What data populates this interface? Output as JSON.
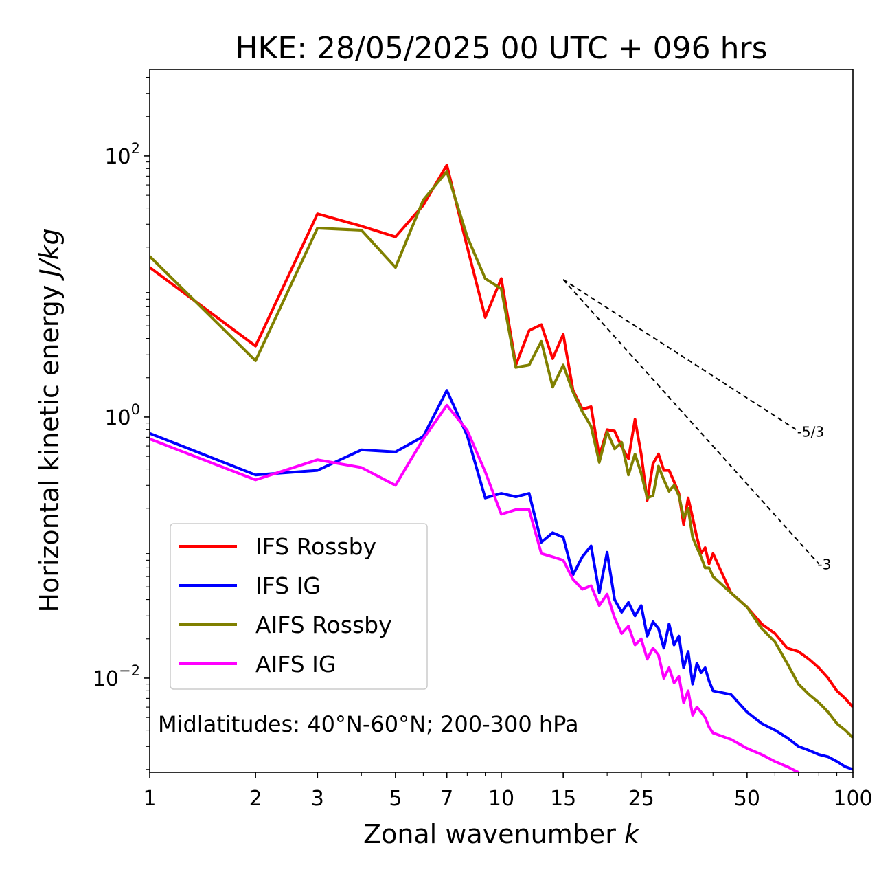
{
  "chart_data": {
    "type": "line",
    "title": "HKE: 28/05/2025 00 UTC + 096 hrs",
    "xlabel_text": "Zonal wavenumber ",
    "xlabel_var": "k",
    "ylabel_text": "Horizontal kinetic energy ",
    "ylabel_unit": "J/kg",
    "xscale": "log",
    "yscale": "log",
    "xlim": [
      1,
      100
    ],
    "ylim": [
      0.0019,
      460
    ],
    "xticks": [
      1,
      2,
      3,
      5,
      7,
      10,
      15,
      25,
      50,
      100
    ],
    "xtick_labels": [
      "1",
      "2",
      "3",
      "5",
      "7",
      "10",
      "15",
      "25",
      "50",
      "100"
    ],
    "yticks": [
      {
        "value": 100,
        "base": "10",
        "exp": "2"
      },
      {
        "value": 1,
        "base": "10",
        "exp": "0"
      },
      {
        "value": 0.01,
        "base": "10",
        "exp": "−2"
      }
    ],
    "legend_placement": "lower-left",
    "annotation": "Midlatitudes: 40°N-60°N; 200-300 hPa",
    "reference_slopes": [
      {
        "label": "-5/3",
        "x": [
          15,
          70
        ],
        "y": [
          11.3,
          0.78
        ]
      },
      {
        "label": "-3",
        "x": [
          15,
          80
        ],
        "y": [
          11.3,
          0.075
        ]
      }
    ],
    "series": [
      {
        "name": "IFS Rossby",
        "color": "#ff0000",
        "x": [
          1,
          2,
          3,
          4,
          5,
          6,
          7,
          8,
          9,
          10,
          11,
          12,
          13,
          14,
          15,
          16,
          17,
          18,
          19,
          20,
          21,
          22,
          23,
          24,
          25,
          26,
          27,
          28,
          29,
          30,
          31,
          32,
          33,
          34,
          35,
          36,
          37,
          38,
          39,
          40,
          45,
          50,
          55,
          60,
          65,
          70,
          75,
          80,
          85,
          90,
          95,
          100
        ],
        "y": [
          14,
          3.5,
          36,
          29,
          24,
          42,
          85,
          20,
          5.8,
          11.5,
          2.5,
          4.6,
          5.1,
          2.8,
          4.3,
          1.6,
          1.15,
          1.2,
          0.5,
          0.8,
          0.78,
          0.59,
          0.48,
          0.96,
          0.52,
          0.23,
          0.44,
          0.52,
          0.39,
          0.39,
          0.32,
          0.26,
          0.15,
          0.24,
          0.17,
          0.12,
          0.09,
          0.1,
          0.075,
          0.09,
          0.045,
          0.035,
          0.026,
          0.022,
          0.017,
          0.016,
          0.014,
          0.012,
          0.01,
          0.008,
          0.007,
          0.006
        ]
      },
      {
        "name": "IFS IG",
        "color": "#0000ff",
        "x": [
          1,
          2,
          3,
          4,
          5,
          6,
          7,
          8,
          9,
          10,
          11,
          12,
          13,
          14,
          15,
          16,
          17,
          18,
          19,
          20,
          21,
          22,
          23,
          24,
          25,
          26,
          27,
          28,
          29,
          30,
          31,
          32,
          33,
          34,
          35,
          36,
          37,
          38,
          39,
          40,
          45,
          50,
          55,
          60,
          65,
          70,
          75,
          80,
          85,
          90,
          95,
          100
        ],
        "y": [
          0.75,
          0.36,
          0.39,
          0.56,
          0.54,
          0.71,
          1.6,
          0.72,
          0.24,
          0.26,
          0.245,
          0.26,
          0.11,
          0.13,
          0.12,
          0.062,
          0.085,
          0.103,
          0.045,
          0.092,
          0.04,
          0.032,
          0.038,
          0.03,
          0.036,
          0.021,
          0.027,
          0.024,
          0.017,
          0.026,
          0.018,
          0.021,
          0.012,
          0.016,
          0.009,
          0.013,
          0.011,
          0.012,
          0.0095,
          0.008,
          0.0075,
          0.0055,
          0.0045,
          0.004,
          0.0035,
          0.003,
          0.0028,
          0.0026,
          0.0025,
          0.0023,
          0.0021,
          0.002
        ]
      },
      {
        "name": "AIFS Rossby",
        "color": "#808000",
        "x": [
          1,
          2,
          3,
          4,
          5,
          6,
          7,
          8,
          9,
          10,
          11,
          12,
          13,
          14,
          15,
          16,
          17,
          18,
          19,
          20,
          21,
          22,
          23,
          24,
          25,
          26,
          27,
          28,
          29,
          30,
          31,
          32,
          33,
          34,
          35,
          36,
          37,
          38,
          39,
          40,
          45,
          50,
          55,
          60,
          65,
          70,
          75,
          80,
          85,
          90,
          95,
          100
        ],
        "y": [
          17,
          2.7,
          28,
          27,
          14,
          46,
          76,
          24,
          11.5,
          9.6,
          2.4,
          2.5,
          3.8,
          1.7,
          2.5,
          1.55,
          1.1,
          0.85,
          0.45,
          0.77,
          0.57,
          0.64,
          0.36,
          0.52,
          0.37,
          0.24,
          0.25,
          0.42,
          0.33,
          0.27,
          0.3,
          0.25,
          0.17,
          0.2,
          0.12,
          0.1,
          0.085,
          0.07,
          0.07,
          0.06,
          0.045,
          0.035,
          0.024,
          0.019,
          0.013,
          0.009,
          0.0075,
          0.0065,
          0.0055,
          0.0045,
          0.004,
          0.0035
        ]
      },
      {
        "name": "AIFS IG",
        "color": "#ff00ff",
        "x": [
          1,
          2,
          3,
          4,
          5,
          6,
          7,
          8,
          9,
          10,
          11,
          12,
          13,
          14,
          15,
          16,
          17,
          18,
          19,
          20,
          21,
          22,
          23,
          24,
          25,
          26,
          27,
          28,
          29,
          30,
          31,
          32,
          33,
          34,
          35,
          36,
          37,
          38,
          39,
          40,
          45,
          50,
          55,
          60,
          65,
          70
        ],
        "y": [
          0.68,
          0.33,
          0.47,
          0.41,
          0.3,
          0.68,
          1.23,
          0.79,
          0.38,
          0.18,
          0.195,
          0.195,
          0.09,
          0.085,
          0.08,
          0.057,
          0.048,
          0.051,
          0.036,
          0.044,
          0.029,
          0.022,
          0.025,
          0.018,
          0.02,
          0.014,
          0.017,
          0.015,
          0.01,
          0.012,
          0.0092,
          0.0103,
          0.0065,
          0.008,
          0.0052,
          0.006,
          0.0055,
          0.005,
          0.0042,
          0.0038,
          0.0034,
          0.0029,
          0.0026,
          0.0023,
          0.0021,
          0.0019
        ]
      }
    ]
  }
}
